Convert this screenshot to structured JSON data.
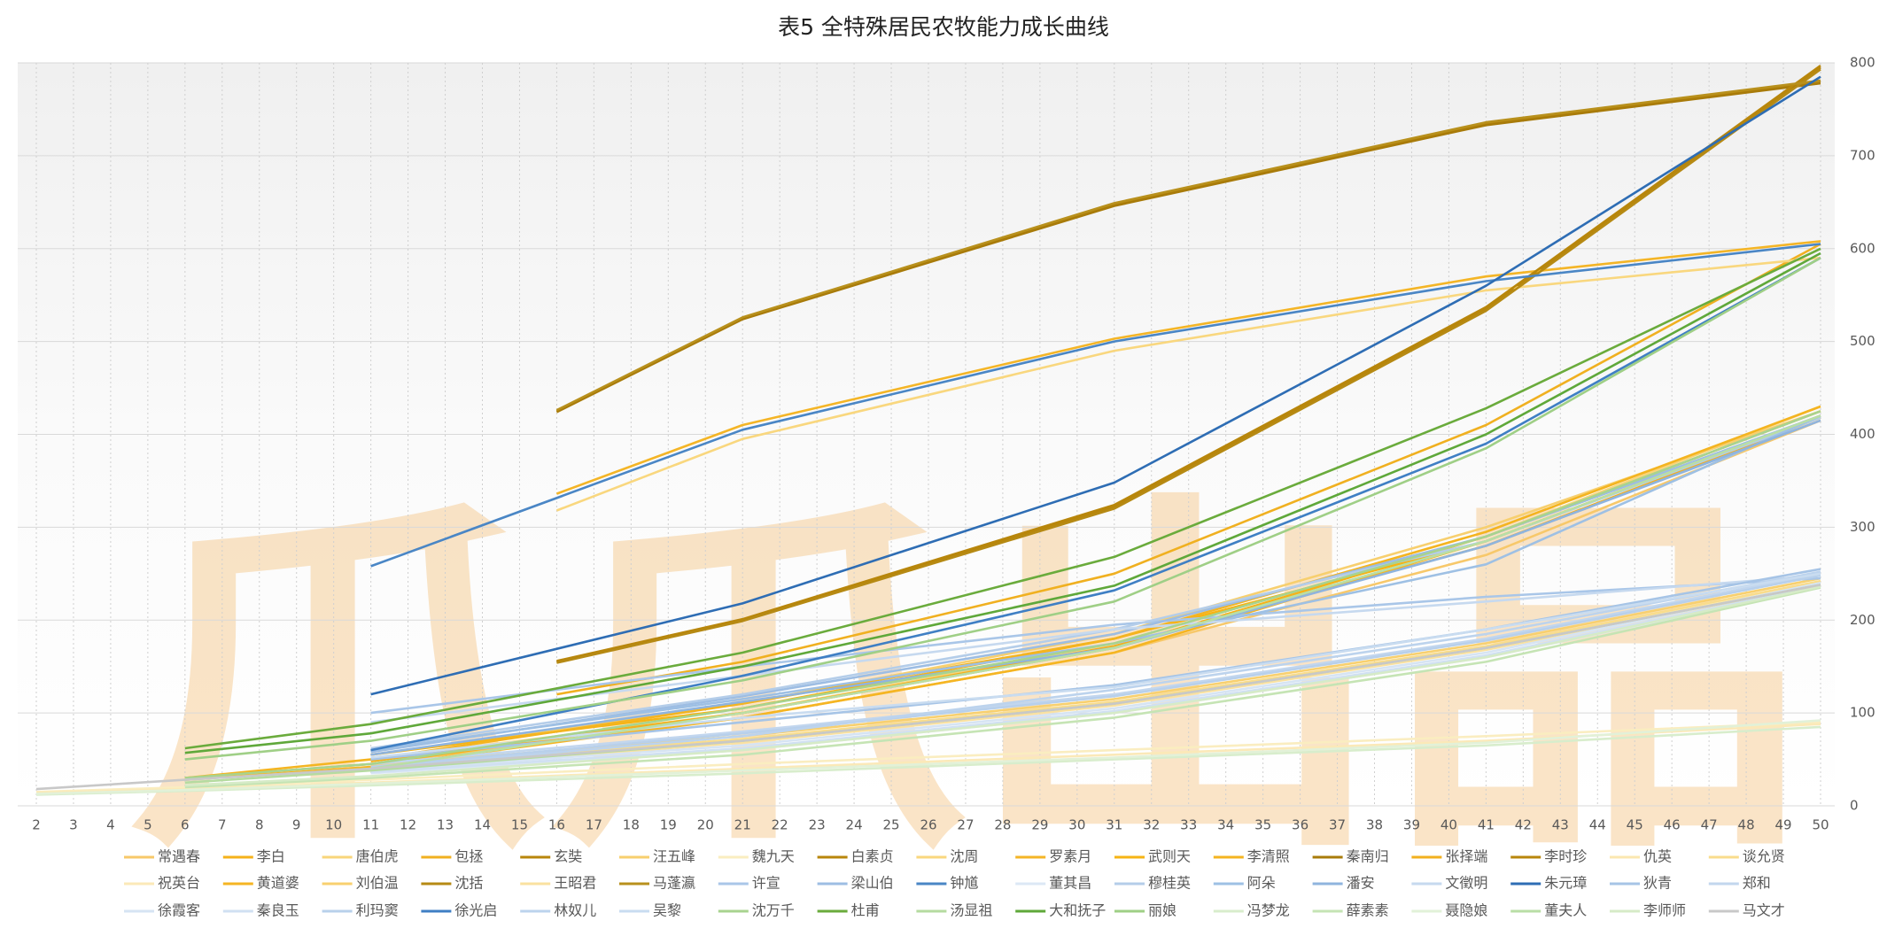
{
  "chart_data": {
    "type": "line",
    "title": "表5 全特殊居民农牧能力成长曲线",
    "watermark": "爪爪出品",
    "categories": [
      2,
      3,
      4,
      5,
      6,
      7,
      8,
      9,
      10,
      11,
      12,
      13,
      14,
      15,
      16,
      17,
      18,
      19,
      20,
      21,
      22,
      23,
      24,
      25,
      26,
      27,
      28,
      29,
      30,
      31,
      32,
      33,
      34,
      35,
      36,
      37,
      38,
      39,
      40,
      41,
      42,
      43,
      44,
      45,
      46,
      47,
      48,
      49,
      50
    ],
    "xlim": [
      2,
      50
    ],
    "ylim": [
      0,
      800
    ],
    "yticks": [
      0,
      100,
      200,
      300,
      400,
      500,
      600,
      700,
      800
    ],
    "grid": true,
    "legend": "bottom",
    "series": [
      {
        "name": "常遇春",
        "color": "#f7c86a",
        "x": [
          11,
          21,
          31,
          41,
          50
        ],
        "values": [
          45,
          95,
          165,
          270,
          415
        ]
      },
      {
        "name": "李白",
        "color": "#f5b21a",
        "x": [
          6,
          11,
          21,
          31,
          41,
          50
        ],
        "values": [
          30,
          45,
          100,
          170,
          290,
          425
        ]
      },
      {
        "name": "唐伯虎",
        "color": "#f8d57a",
        "x": [
          11,
          21,
          31,
          41,
          50
        ],
        "values": [
          50,
          100,
          175,
          290,
          430
        ]
      },
      {
        "name": "包拯",
        "color": "#f0b020",
        "x": [
          16,
          21,
          31,
          41,
          50
        ],
        "values": [
          120,
          155,
          250,
          410,
          605
        ]
      },
      {
        "name": "玄奘",
        "color": "#b8860b",
        "x": [
          16,
          21,
          31,
          41,
          50
        ],
        "values": [
          425,
          525,
          648,
          735,
          780
        ]
      },
      {
        "name": "汪五峰",
        "color": "#f7cf6e",
        "x": [
          11,
          21,
          31,
          41,
          50
        ],
        "values": [
          55,
          110,
          185,
          300,
          425
        ]
      },
      {
        "name": "魏九天",
        "color": "#faedc0",
        "x": [
          2,
          6,
          11,
          21,
          31,
          41,
          50
        ],
        "values": [
          15,
          20,
          28,
          45,
          60,
          75,
          90
        ]
      },
      {
        "name": "白素贞",
        "color": "#b8860b",
        "x": [
          16,
          21,
          31,
          41,
          50
        ],
        "values": [
          155,
          200,
          322,
          535,
          795
        ]
      },
      {
        "name": "沈周",
        "color": "#f9d77e",
        "x": [
          16,
          21,
          31,
          41,
          50
        ],
        "values": [
          318,
          395,
          490,
          555,
          590
        ]
      },
      {
        "name": "罗素月",
        "color": "#f4b526",
        "x": [
          16,
          21,
          31,
          41,
          50
        ],
        "values": [
          336,
          410,
          503,
          570,
          608
        ]
      },
      {
        "name": "武则天",
        "color": "#f6b414",
        "x": [
          11,
          21,
          31,
          41,
          50
        ],
        "values": [
          55,
          105,
          180,
          285,
          420
        ]
      },
      {
        "name": "李清照",
        "color": "#f4b420",
        "x": [
          6,
          11,
          21,
          31,
          41,
          50
        ],
        "values": [
          30,
          50,
          110,
          180,
          295,
          430
        ]
      },
      {
        "name": "秦南归",
        "color": "#a87b0a",
        "x": [
          16,
          21,
          31,
          41,
          50
        ],
        "values": [
          424,
          524,
          646,
          733,
          778
        ]
      },
      {
        "name": "张择端",
        "color": "#f2b01e",
        "x": [
          11,
          21,
          31,
          41,
          50
        ],
        "values": [
          48,
          100,
          172,
          280,
          418
        ]
      },
      {
        "name": "李时珍",
        "color": "#b8860b",
        "x": [
          16,
          21,
          31,
          41,
          50
        ],
        "values": [
          156,
          201,
          324,
          537,
          797
        ]
      },
      {
        "name": "仇英",
        "color": "#fbe7b0",
        "x": [
          11,
          21,
          31,
          41,
          50
        ],
        "values": [
          40,
          70,
          110,
          170,
          240
        ]
      },
      {
        "name": "谈允贤",
        "color": "#f9dc8c",
        "x": [
          11,
          21,
          31,
          41,
          50
        ],
        "values": [
          42,
          72,
          112,
          172,
          242
        ]
      },
      {
        "name": "祝英台",
        "color": "#fbe9b8",
        "x": [
          2,
          6,
          11,
          21,
          31,
          41,
          50
        ],
        "values": [
          14,
          18,
          25,
          40,
          55,
          70,
          88
        ]
      },
      {
        "name": "黄道婆",
        "color": "#f5b522",
        "x": [
          6,
          11,
          21,
          31,
          41,
          50
        ],
        "values": [
          28,
          42,
          95,
          165,
          285,
          420
        ]
      },
      {
        "name": "刘伯温",
        "color": "#f8d06f",
        "x": [
          11,
          21,
          31,
          41,
          50
        ],
        "values": [
          44,
          75,
          115,
          175,
          245
        ]
      },
      {
        "name": "沈括",
        "color": "#b68a14",
        "x": [
          16,
          21,
          31,
          41,
          50
        ],
        "values": [
          154,
          199,
          320,
          533,
          793
        ]
      },
      {
        "name": "王昭君",
        "color": "#fae1a0",
        "x": [
          11,
          21,
          31,
          41,
          50
        ],
        "values": [
          38,
          68,
          108,
          168,
          238
        ]
      },
      {
        "name": "马蓬瀛",
        "color": "#b8901c",
        "x": [
          16,
          21,
          31,
          41,
          50
        ],
        "values": [
          426,
          526,
          649,
          736,
          781
        ]
      },
      {
        "name": "许宣",
        "color": "#a9c6e8",
        "x": [
          11,
          21,
          31,
          41,
          50
        ],
        "values": [
          100,
          150,
          195,
          225,
          245
        ]
      },
      {
        "name": "梁山伯",
        "color": "#9dbde3",
        "x": [
          11,
          21,
          31,
          41,
          50
        ],
        "values": [
          58,
          118,
          185,
          290,
          420
        ]
      },
      {
        "name": "钟馗",
        "color": "#4a86c5",
        "x": [
          11,
          21,
          31,
          41,
          50
        ],
        "values": [
          258,
          405,
          500,
          565,
          605
        ]
      },
      {
        "name": "董其昌",
        "color": "#dce8f5",
        "x": [
          11,
          21,
          31,
          41,
          50
        ],
        "values": [
          35,
          60,
          100,
          160,
          235
        ]
      },
      {
        "name": "穆桂英",
        "color": "#b4cde9",
        "x": [
          11,
          21,
          31,
          41,
          50
        ],
        "values": [
          62,
          120,
          190,
          285,
          418
        ]
      },
      {
        "name": "阿朵",
        "color": "#9ec0e4",
        "x": [
          11,
          21,
          31,
          41,
          50
        ],
        "values": [
          60,
          115,
          175,
          260,
          420
        ]
      },
      {
        "name": "潘安",
        "color": "#8fb4de",
        "x": [
          11,
          21,
          31,
          41,
          50
        ],
        "values": [
          55,
          112,
          170,
          280,
          415
        ]
      },
      {
        "name": "文徵明",
        "color": "#c6d9ef",
        "x": [
          11,
          21,
          31,
          41,
          50
        ],
        "values": [
          90,
          140,
          190,
          220,
          248
        ]
      },
      {
        "name": "朱元璋",
        "color": "#2e6db4",
        "x": [
          11,
          21,
          31,
          41,
          50
        ],
        "values": [
          120,
          218,
          348,
          560,
          785
        ]
      },
      {
        "name": "狄青",
        "color": "#a6c4e6",
        "x": [
          11,
          21,
          31,
          41,
          50
        ],
        "values": [
          50,
          90,
          130,
          190,
          255
        ]
      },
      {
        "name": "郑和",
        "color": "#c2d6ee",
        "x": [
          11,
          21,
          31,
          41,
          50
        ],
        "values": [
          45,
          80,
          120,
          180,
          250
        ]
      },
      {
        "name": "徐霞客",
        "color": "#d6e4f3",
        "x": [
          11,
          21,
          31,
          41,
          50
        ],
        "values": [
          38,
          65,
          105,
          165,
          240
        ]
      },
      {
        "name": "秦良玉",
        "color": "#d0e0f2",
        "x": [
          11,
          21,
          31,
          41,
          50
        ],
        "values": [
          36,
          62,
          102,
          162,
          237
        ]
      },
      {
        "name": "利玛窦",
        "color": "#b8d0eb",
        "x": [
          11,
          21,
          31,
          41,
          50
        ],
        "values": [
          42,
          78,
          118,
          178,
          248
        ]
      },
      {
        "name": "徐光启",
        "color": "#3f7fc4",
        "x": [
          11,
          21,
          31,
          41,
          50
        ],
        "values": [
          60,
          140,
          232,
          390,
          590
        ]
      },
      {
        "name": "林奴儿",
        "color": "#bcd3ed",
        "x": [
          11,
          21,
          31,
          41,
          50
        ],
        "values": [
          40,
          75,
          125,
          185,
          252
        ]
      },
      {
        "name": "吴黎",
        "color": "#c9dcf0",
        "x": [
          11,
          21,
          31,
          41,
          50
        ],
        "values": [
          52,
          95,
          128,
          190,
          250
        ]
      },
      {
        "name": "沈万千",
        "color": "#a8d38f",
        "x": [
          6,
          11,
          21,
          31,
          41,
          50
        ],
        "values": [
          30,
          45,
          105,
          175,
          290,
          425
        ]
      },
      {
        "name": "杜甫",
        "color": "#6aab3c",
        "x": [
          6,
          11,
          21,
          31,
          41,
          50
        ],
        "values": [
          62,
          88,
          165,
          268,
          428,
          600
        ]
      },
      {
        "name": "汤显祖",
        "color": "#b5dba0",
        "x": [
          6,
          11,
          21,
          31,
          41,
          50
        ],
        "values": [
          25,
          38,
          70,
          110,
          170,
          238
        ]
      },
      {
        "name": "大和抚子",
        "color": "#5fa83a",
        "x": [
          6,
          11,
          21,
          31,
          41,
          50
        ],
        "values": [
          57,
          78,
          150,
          237,
          400,
          595
        ]
      },
      {
        "name": "丽娘",
        "color": "#9fcf86",
        "x": [
          6,
          11,
          21,
          31,
          41,
          50
        ],
        "values": [
          50,
          70,
          135,
          220,
          385,
          590
        ]
      },
      {
        "name": "冯梦龙",
        "color": "#d8edcc",
        "x": [
          2,
          6,
          11,
          21,
          31,
          41,
          50
        ],
        "values": [
          12,
          16,
          22,
          35,
          50,
          65,
          85
        ]
      },
      {
        "name": "薛素素",
        "color": "#c5e4b4",
        "x": [
          6,
          11,
          21,
          31,
          41,
          50
        ],
        "values": [
          20,
          30,
          55,
          95,
          155,
          235
        ]
      },
      {
        "name": "聂隐娘",
        "color": "#e2f1d8",
        "x": [
          2,
          6,
          11,
          21,
          31,
          41,
          50
        ],
        "values": [
          13,
          17,
          24,
          38,
          52,
          68,
          92
        ]
      },
      {
        "name": "董夫人",
        "color": "#b9dea6",
        "x": [
          6,
          11,
          21,
          31,
          41,
          50
        ],
        "values": [
          28,
          40,
          100,
          170,
          285,
          420
        ]
      },
      {
        "name": "李师师",
        "color": "#d6ebc7",
        "x": [
          6,
          11,
          21,
          31,
          41,
          50
        ],
        "values": [
          22,
          32,
          60,
          100,
          160,
          236
        ]
      },
      {
        "name": "马文才",
        "color": "#c8c8c8",
        "x": [
          2,
          6,
          11,
          21,
          31,
          41,
          50
        ],
        "values": [
          18,
          28,
          40,
          70,
          110,
          170,
          238
        ]
      }
    ]
  }
}
